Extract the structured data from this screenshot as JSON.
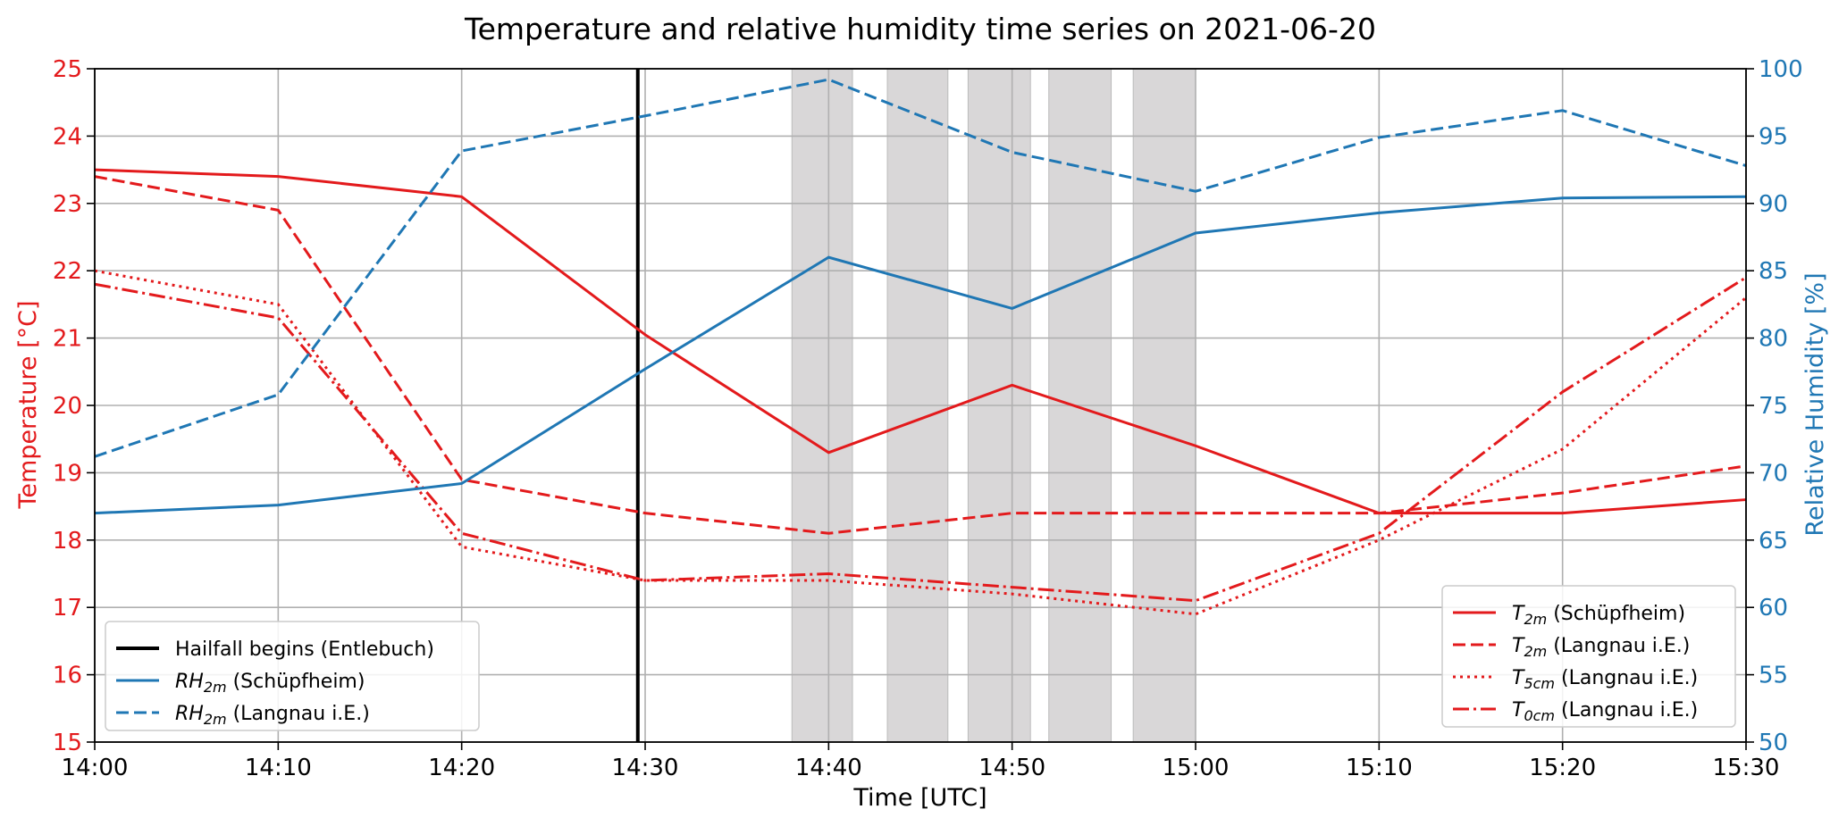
{
  "chart_data": {
    "type": "line",
    "title": "Temperature and relative humidity time series on 2021-06-20",
    "xlabel": "Time [UTC]",
    "ylabel_left": "Temperature [°C]",
    "ylabel_right": "Relative Humidity [%]",
    "x": [
      "14:00",
      "14:10",
      "14:20",
      "14:30",
      "14:40",
      "14:50",
      "15:00",
      "15:10",
      "15:20",
      "15:30"
    ],
    "x_ticks": [
      "14:00",
      "14:10",
      "14:20",
      "14:30",
      "14:40",
      "14:50",
      "15:00",
      "15:10",
      "15:20",
      "15:30"
    ],
    "ylim_left": [
      15,
      25
    ],
    "ylim_right": [
      50,
      100
    ],
    "y_ticks_left": [
      15,
      16,
      17,
      18,
      19,
      20,
      21,
      22,
      23,
      24,
      25
    ],
    "y_ticks_right": [
      50,
      55,
      60,
      65,
      70,
      75,
      80,
      85,
      90,
      95,
      100
    ],
    "grid": true,
    "colors": {
      "temperature": "#e31a1c",
      "humidity": "#1f77b4",
      "event": "#000000",
      "shading": "#d9d7d8",
      "left_axis": "#e31a1c",
      "right_axis": "#1f77b4"
    },
    "vline": {
      "x": "14:29.6",
      "label": "Hailfall begins (Entlebuch)"
    },
    "shaded_spans": [
      [
        "14:38",
        "14:41.3"
      ],
      [
        "14:43.2",
        "14:46.5"
      ],
      [
        "14:47.6",
        "14:51"
      ],
      [
        "14:52",
        "14:55.4"
      ],
      [
        "14:56.6",
        "15:00"
      ]
    ],
    "series": [
      {
        "name": "T_2m (Schüpfheim)",
        "sym": "T",
        "sub": "2m",
        "site": " (Schüpfheim)",
        "axis": "left",
        "style": "solid",
        "values": [
          23.5,
          23.4,
          23.1,
          21.05,
          19.3,
          20.3,
          19.4,
          18.4,
          18.4,
          18.6
        ]
      },
      {
        "name": "T_2m (Langnau i.E.)",
        "sym": "T",
        "sub": "2m",
        "site": " (Langnau i.E.)",
        "axis": "left",
        "style": "dashed",
        "values": [
          23.4,
          22.9,
          18.9,
          18.4,
          18.1,
          18.4,
          18.4,
          18.4,
          18.7,
          19.1
        ]
      },
      {
        "name": "T_5cm (Langnau i.E.)",
        "sym": "T",
        "sub": "5cm",
        "site": " (Langnau i.E.)",
        "axis": "left",
        "style": "dotted",
        "values": [
          22.0,
          21.5,
          17.9,
          17.4,
          17.4,
          17.2,
          16.9,
          18.0,
          19.35,
          21.6
        ]
      },
      {
        "name": "T_0cm (Langnau i.E.)",
        "sym": "T",
        "sub": "0cm",
        "site": " (Langnau i.E.)",
        "axis": "left",
        "style": "dashdot",
        "values": [
          21.8,
          21.3,
          18.1,
          17.4,
          17.5,
          17.3,
          17.1,
          18.1,
          20.2,
          21.9
        ]
      },
      {
        "name": "RH_2m (Schüpfheim)",
        "sym": "RH",
        "sub": "2m",
        "site": " (Schüpfheim)",
        "axis": "right",
        "style": "solid",
        "values": [
          67.0,
          67.6,
          69.2,
          77.7,
          86.0,
          82.2,
          87.8,
          89.3,
          90.4,
          90.5
        ]
      },
      {
        "name": "RH_2m (Langnau i.E.)",
        "sym": "RH",
        "sub": "2m",
        "site": " (Langnau i.E.)",
        "axis": "right",
        "style": "dashed",
        "values": [
          71.2,
          75.8,
          93.9,
          96.5,
          99.2,
          93.8,
          90.9,
          94.9,
          96.9,
          92.8
        ]
      }
    ],
    "legend_left": {
      "placement": "lower-left",
      "entries": [
        "vline",
        4,
        5
      ]
    },
    "legend_right": {
      "placement": "lower-right",
      "entries": [
        0,
        1,
        2,
        3
      ]
    }
  }
}
